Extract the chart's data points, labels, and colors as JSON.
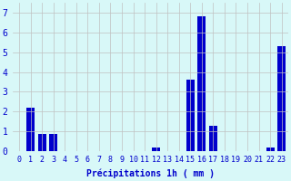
{
  "hours": [
    0,
    1,
    2,
    3,
    4,
    5,
    6,
    7,
    8,
    9,
    10,
    11,
    12,
    13,
    14,
    15,
    16,
    17,
    18,
    19,
    20,
    21,
    22,
    23
  ],
  "values": [
    0,
    2.2,
    0.9,
    0.9,
    0,
    0,
    0,
    0,
    0,
    0,
    0,
    0,
    0.2,
    0,
    0,
    3.6,
    6.8,
    1.3,
    0,
    0,
    0,
    0,
    0.2,
    5.3
  ],
  "bar_color": "#0000cc",
  "background_color": "#d8f8f8",
  "grid_color": "#c0c0c0",
  "xlabel": "Précipitations 1h ( mm )",
  "ylim": [
    0,
    7.5
  ],
  "yticks": [
    0,
    1,
    2,
    3,
    4,
    5,
    6,
    7
  ],
  "label_color": "#0000cc",
  "tick_fontsize": 6,
  "xlabel_fontsize": 7
}
